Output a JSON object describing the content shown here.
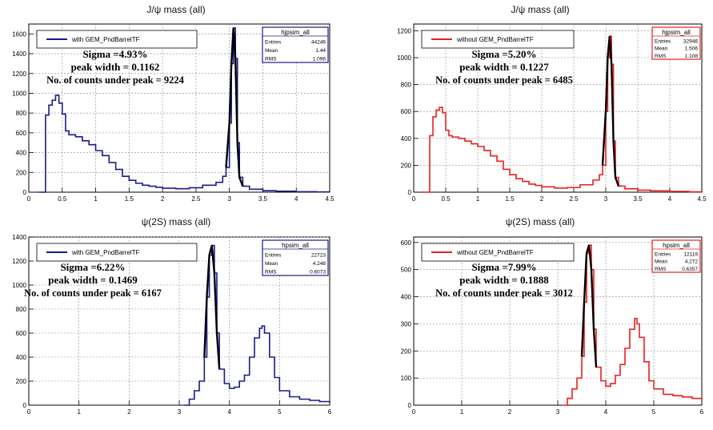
{
  "chart_data": [
    {
      "type": "line",
      "title": "J/ψ mass (all)",
      "legend": "with GEM_PndBarrelTF",
      "stats": {
        "name": "hjpsim_all",
        "entries": "44246",
        "mean": "1.44",
        "rms": "1.096"
      },
      "annotations": [
        "Sigma =4.93%",
        "peak width = 0.1162",
        "No. of counts under peak = 9224"
      ],
      "series_color": "#1a1a8c",
      "peak_color": "#000000",
      "xlim": [
        0,
        4.5
      ],
      "ylim": [
        0,
        1700
      ],
      "xticks": [
        "0",
        "0.5",
        "1",
        "1.5",
        "2",
        "2.5",
        "3",
        "3.5",
        "4",
        "4.5"
      ],
      "yticks": [
        "0",
        "200",
        "400",
        "600",
        "800",
        "1000",
        "1200",
        "1400",
        "1600"
      ],
      "peak_range": [
        2.95,
        3.25
      ],
      "x": [
        0.15,
        0.2,
        0.25,
        0.3,
        0.35,
        0.4,
        0.45,
        0.5,
        0.55,
        0.6,
        0.7,
        0.8,
        0.9,
        1.0,
        1.1,
        1.2,
        1.3,
        1.4,
        1.5,
        1.6,
        1.7,
        1.8,
        1.9,
        2.0,
        2.2,
        2.4,
        2.6,
        2.8,
        2.9,
        2.95,
        3.0,
        3.03,
        3.06,
        3.09,
        3.12,
        3.15,
        3.2,
        3.3,
        3.5,
        3.7,
        4.0,
        4.3,
        4.5
      ],
      "y": [
        0,
        0,
        780,
        880,
        930,
        980,
        900,
        790,
        620,
        580,
        560,
        520,
        480,
        420,
        370,
        300,
        230,
        160,
        120,
        90,
        70,
        60,
        50,
        40,
        35,
        45,
        70,
        100,
        160,
        250,
        700,
        1300,
        1660,
        1350,
        500,
        150,
        60,
        30,
        15,
        10,
        5,
        3,
        2
      ]
    },
    {
      "type": "line",
      "title": "J/ψ mass (all)",
      "legend": "without GEM_PndBarrelTF",
      "stats": {
        "name": "hjpsim_all",
        "entries": "32946",
        "mean": "1.506",
        "rms": "1.108"
      },
      "annotations": [
        "Sigma =5.20%",
        "peak width = 0.1227",
        "No. of counts under peak = 6485"
      ],
      "series_color": "#e82020",
      "peak_color": "#000000",
      "xlim": [
        0,
        4.5
      ],
      "ylim": [
        0,
        1250
      ],
      "xticks": [
        "0",
        "0.5",
        "1",
        "1.5",
        "2",
        "2.5",
        "3",
        "3.5",
        "4",
        "4.5"
      ],
      "yticks": [
        "0",
        "200",
        "400",
        "600",
        "800",
        "1000",
        "1200"
      ],
      "peak_range": [
        2.95,
        3.25
      ],
      "x": [
        0.15,
        0.2,
        0.25,
        0.3,
        0.35,
        0.4,
        0.45,
        0.5,
        0.55,
        0.6,
        0.7,
        0.8,
        0.9,
        1.0,
        1.1,
        1.2,
        1.3,
        1.4,
        1.5,
        1.6,
        1.7,
        1.8,
        1.9,
        2.0,
        2.2,
        2.4,
        2.6,
        2.8,
        2.9,
        2.95,
        3.0,
        3.03,
        3.06,
        3.09,
        3.12,
        3.15,
        3.2,
        3.3,
        3.5,
        3.7,
        4.0,
        4.3,
        4.5
      ],
      "y": [
        0,
        0,
        420,
        560,
        610,
        630,
        590,
        460,
        420,
        410,
        400,
        380,
        360,
        340,
        310,
        270,
        230,
        170,
        130,
        100,
        80,
        60,
        50,
        40,
        30,
        35,
        55,
        90,
        130,
        200,
        600,
        1000,
        1160,
        950,
        380,
        110,
        45,
        25,
        15,
        10,
        6,
        3,
        2
      ]
    },
    {
      "type": "line",
      "title": "ψ(2S) mass (all)",
      "legend": "with GEM_PndBarrelTF",
      "stats": {
        "name": "hpsim_all",
        "entries": "22723",
        "mean": "4.248",
        "rms": "0.6073"
      },
      "annotations": [
        "Sigma =6.22%",
        "peak width = 0.1469",
        "No. of counts under peak = 6167"
      ],
      "series_color": "#1a1a8c",
      "peak_color": "#000000",
      "xlim": [
        0,
        6
      ],
      "ylim": [
        0,
        1400
      ],
      "xticks": [
        "0",
        "1",
        "2",
        "3",
        "4",
        "5",
        "6"
      ],
      "yticks": [
        "0",
        "200",
        "400",
        "600",
        "800",
        "1000",
        "1200",
        "1400"
      ],
      "peak_range": [
        3.5,
        3.85
      ],
      "x": [
        3.1,
        3.2,
        3.3,
        3.4,
        3.5,
        3.55,
        3.6,
        3.65,
        3.7,
        3.75,
        3.8,
        3.9,
        4.0,
        4.1,
        4.2,
        4.3,
        4.4,
        4.5,
        4.6,
        4.65,
        4.7,
        4.8,
        4.9,
        5.0,
        5.2,
        5.4,
        5.6,
        5.8,
        6.0
      ],
      "y": [
        0,
        50,
        120,
        200,
        400,
        900,
        1250,
        1330,
        1100,
        600,
        300,
        180,
        140,
        150,
        200,
        250,
        400,
        560,
        640,
        660,
        600,
        400,
        230,
        120,
        70,
        50,
        40,
        30,
        20
      ]
    },
    {
      "type": "line",
      "title": "ψ(2S) mass (all)",
      "legend": "without GEM_PndBarrelTF",
      "stats": {
        "name": "hpsim_all",
        "entries": "12119",
        "mean": "4.272",
        "rms": "0.6357"
      },
      "annotations": [
        "Sigma =7.99%",
        "peak width = 0.1888",
        "No. of counts under peak = 3012"
      ],
      "series_color": "#e82020",
      "peak_color": "#000000",
      "xlim": [
        0,
        6
      ],
      "ylim": [
        0,
        620
      ],
      "xticks": [
        "0",
        "1",
        "2",
        "3",
        "4",
        "5",
        "6"
      ],
      "yticks": [
        "0",
        "100",
        "200",
        "300",
        "400",
        "500",
        "600"
      ],
      "peak_range": [
        3.5,
        3.85
      ],
      "x": [
        3.1,
        3.2,
        3.3,
        3.4,
        3.5,
        3.55,
        3.6,
        3.65,
        3.7,
        3.75,
        3.8,
        3.9,
        4.0,
        4.1,
        4.2,
        4.3,
        4.4,
        4.5,
        4.6,
        4.65,
        4.7,
        4.8,
        4.9,
        5.0,
        5.2,
        5.4,
        5.6,
        5.8,
        6.0
      ],
      "y": [
        0,
        25,
        60,
        100,
        180,
        380,
        560,
        590,
        500,
        280,
        140,
        90,
        70,
        80,
        110,
        150,
        210,
        280,
        320,
        300,
        250,
        160,
        90,
        60,
        40,
        35,
        30,
        25,
        15
      ]
    }
  ]
}
